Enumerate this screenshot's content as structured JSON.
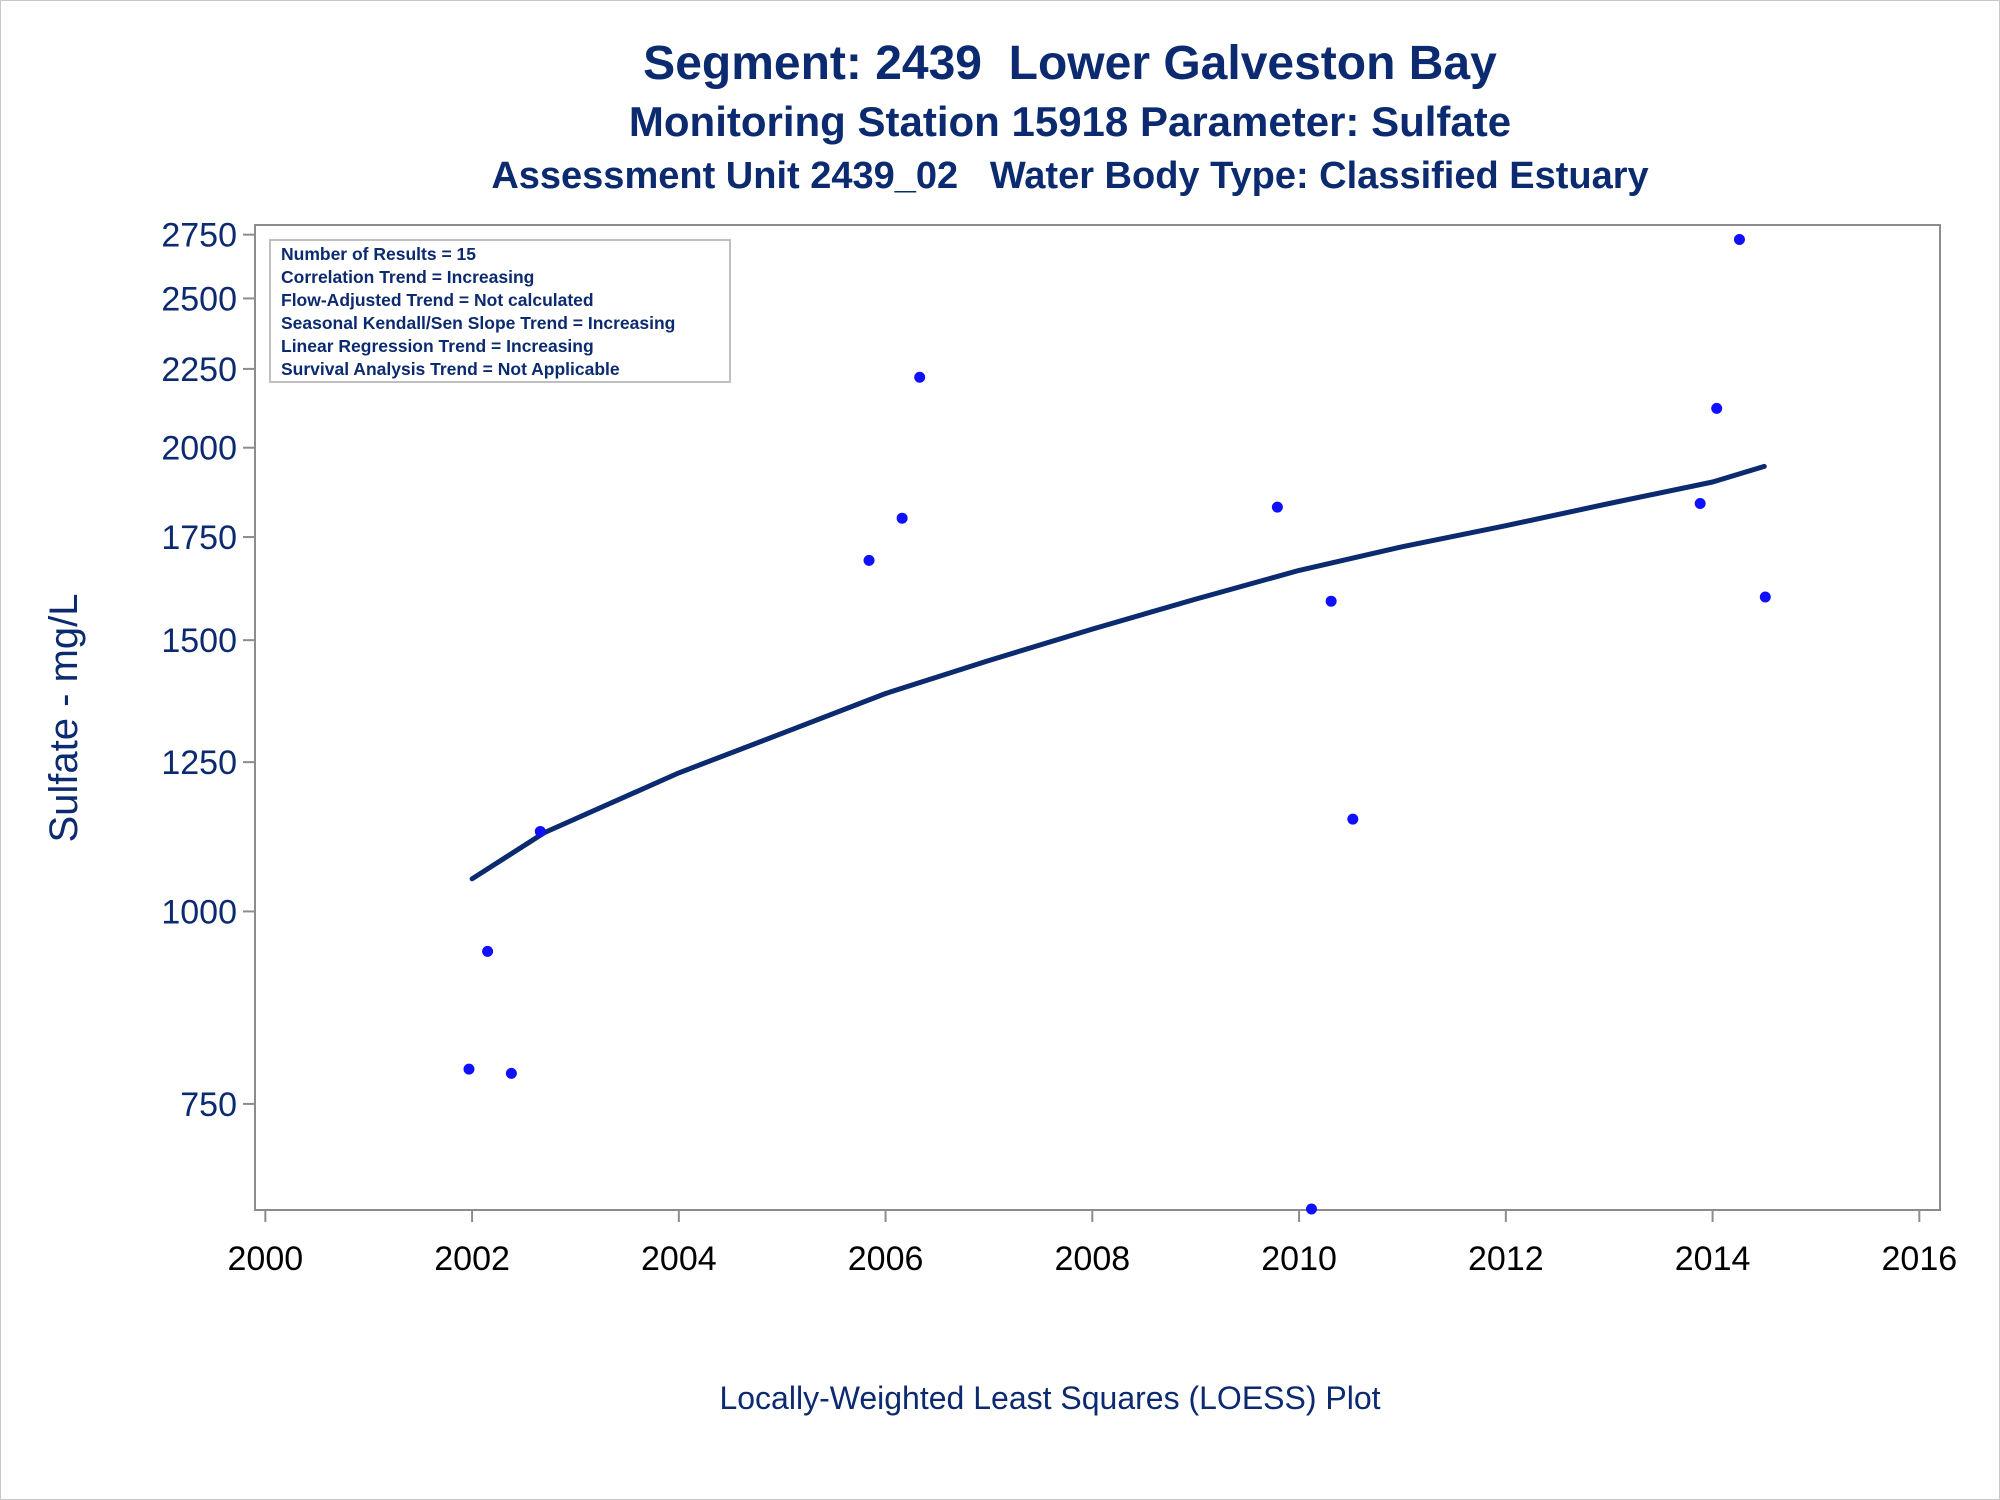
{
  "title": "Segment: 2439  Lower Galveston Bay",
  "subtitle1": "Monitoring Station 15918 Parameter: Sulfate",
  "subtitle2": "Assessment Unit 2439_02   Water Body Type: Classified Estuary",
  "footnote": "Locally-Weighted Least Squares (LOESS) Plot",
  "stats_box": [
    "Number of Results = 15",
    "Correlation Trend = Increasing",
    "Flow-Adjusted Trend = Not calculated",
    "Seasonal Kendall/Sen Slope Trend = Increasing",
    "Linear Regression Trend = Increasing",
    "Survival Analysis Trend = Not Applicable"
  ],
  "colors": {
    "text": "#0b2a6f",
    "points": "#1010ff",
    "loess": "#0b2a6f",
    "axis": "#8c8c8c"
  },
  "chart_data": {
    "type": "scatter",
    "title": "Segment: 2439  Lower Galveston Bay",
    "xlabel": "",
    "ylabel": "Sulfate - mg/L",
    "y_scale": "log",
    "xlim": [
      1999.9,
      2016.2
    ],
    "ylim": [
      640,
      2790
    ],
    "x_ticks": [
      2000,
      2002,
      2004,
      2006,
      2008,
      2010,
      2012,
      2014,
      2016
    ],
    "y_ticks": [
      750,
      1000,
      1250,
      1500,
      1750,
      2000,
      2250,
      2500,
      2750
    ],
    "grid": false,
    "series": [
      {
        "type": "scatter",
        "x": [
          2001.97,
          2002.15,
          2002.38,
          2002.66,
          2005.84,
          2006.16,
          2006.33,
          2009.79,
          2010.12,
          2010.31,
          2010.52,
          2013.88,
          2014.04,
          2014.26,
          2014.51
        ],
        "y": [
          790,
          942,
          785,
          1127,
          1690,
          1800,
          2222,
          1830,
          641,
          1590,
          1148,
          1840,
          2121,
          2730,
          1600
        ]
      },
      {
        "type": "line",
        "x": [
          2002.0,
          2002.7,
          2004.0,
          2005.0,
          2006.0,
          2007.0,
          2008.0,
          2009.0,
          2010.0,
          2011.0,
          2012.0,
          2013.0,
          2014.0,
          2014.5
        ],
        "y": [
          1050,
          1125,
          1230,
          1305,
          1385,
          1455,
          1525,
          1595,
          1665,
          1725,
          1780,
          1840,
          1900,
          1945
        ]
      }
    ]
  }
}
